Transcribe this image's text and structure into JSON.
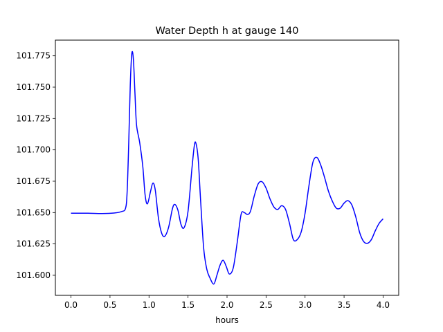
{
  "chart_data": {
    "type": "line",
    "title": "Water Depth h at gauge 140",
    "xlabel": "hours",
    "ylabel": "",
    "xlim": [
      -0.2,
      4.2
    ],
    "ylim": [
      101.584,
      101.7875
    ],
    "xticks": [
      0.0,
      0.5,
      1.0,
      1.5,
      2.0,
      2.5,
      3.0,
      3.5,
      4.0
    ],
    "xtick_labels": [
      "0.0",
      "0.5",
      "1.0",
      "1.5",
      "2.0",
      "2.5",
      "3.0",
      "3.5",
      "4.0"
    ],
    "yticks": [
      101.6,
      101.625,
      101.65,
      101.675,
      101.7,
      101.725,
      101.75,
      101.775
    ],
    "ytick_labels": [
      "101.600",
      "101.625",
      "101.650",
      "101.675",
      "101.700",
      "101.725",
      "101.750",
      "101.775"
    ],
    "grid": false,
    "series": [
      {
        "color": "#0000ff",
        "x": [
          0.0,
          0.2,
          0.4,
          0.55,
          0.65,
          0.7,
          0.72,
          0.74,
          0.76,
          0.78,
          0.8,
          0.82,
          0.84,
          0.88,
          0.92,
          0.95,
          0.98,
          1.02,
          1.05,
          1.08,
          1.12,
          1.16,
          1.2,
          1.25,
          1.3,
          1.33,
          1.37,
          1.41,
          1.45,
          1.5,
          1.55,
          1.58,
          1.6,
          1.63,
          1.66,
          1.7,
          1.74,
          1.78,
          1.83,
          1.87,
          1.91,
          1.95,
          1.99,
          2.03,
          2.08,
          2.13,
          2.18,
          2.22,
          2.26,
          2.3,
          2.35,
          2.4,
          2.45,
          2.5,
          2.55,
          2.6,
          2.65,
          2.7,
          2.75,
          2.8,
          2.85,
          2.9,
          2.95,
          3.0,
          3.05,
          3.1,
          3.15,
          3.2,
          3.25,
          3.3,
          3.35,
          3.4,
          3.45,
          3.5,
          3.55,
          3.6,
          3.65,
          3.7,
          3.75,
          3.8,
          3.85,
          3.9,
          3.95,
          4.0
        ],
        "y": [
          101.6495,
          101.6495,
          101.6492,
          101.6496,
          101.6508,
          101.6535,
          101.667,
          101.705,
          101.752,
          101.777,
          101.772,
          101.745,
          101.72,
          101.706,
          101.687,
          101.664,
          101.657,
          101.667,
          101.6735,
          101.668,
          101.646,
          101.634,
          101.631,
          101.638,
          101.653,
          101.6565,
          101.652,
          101.6405,
          101.638,
          101.651,
          101.685,
          101.703,
          101.7055,
          101.693,
          101.661,
          101.622,
          101.605,
          101.598,
          101.593,
          101.6,
          101.608,
          101.612,
          101.607,
          101.601,
          101.606,
          101.626,
          101.6485,
          101.65,
          101.6485,
          101.651,
          101.6635,
          101.673,
          101.6745,
          101.6695,
          101.661,
          101.6545,
          101.6525,
          101.6555,
          101.6525,
          101.6415,
          101.6285,
          101.6285,
          101.6345,
          101.6495,
          101.6715,
          101.69,
          101.694,
          101.688,
          101.678,
          101.667,
          101.659,
          101.6535,
          101.6535,
          101.6575,
          101.6595,
          101.656,
          101.6465,
          101.634,
          101.627,
          101.6255,
          101.6285,
          101.6355,
          101.6415,
          101.645
        ]
      }
    ]
  }
}
